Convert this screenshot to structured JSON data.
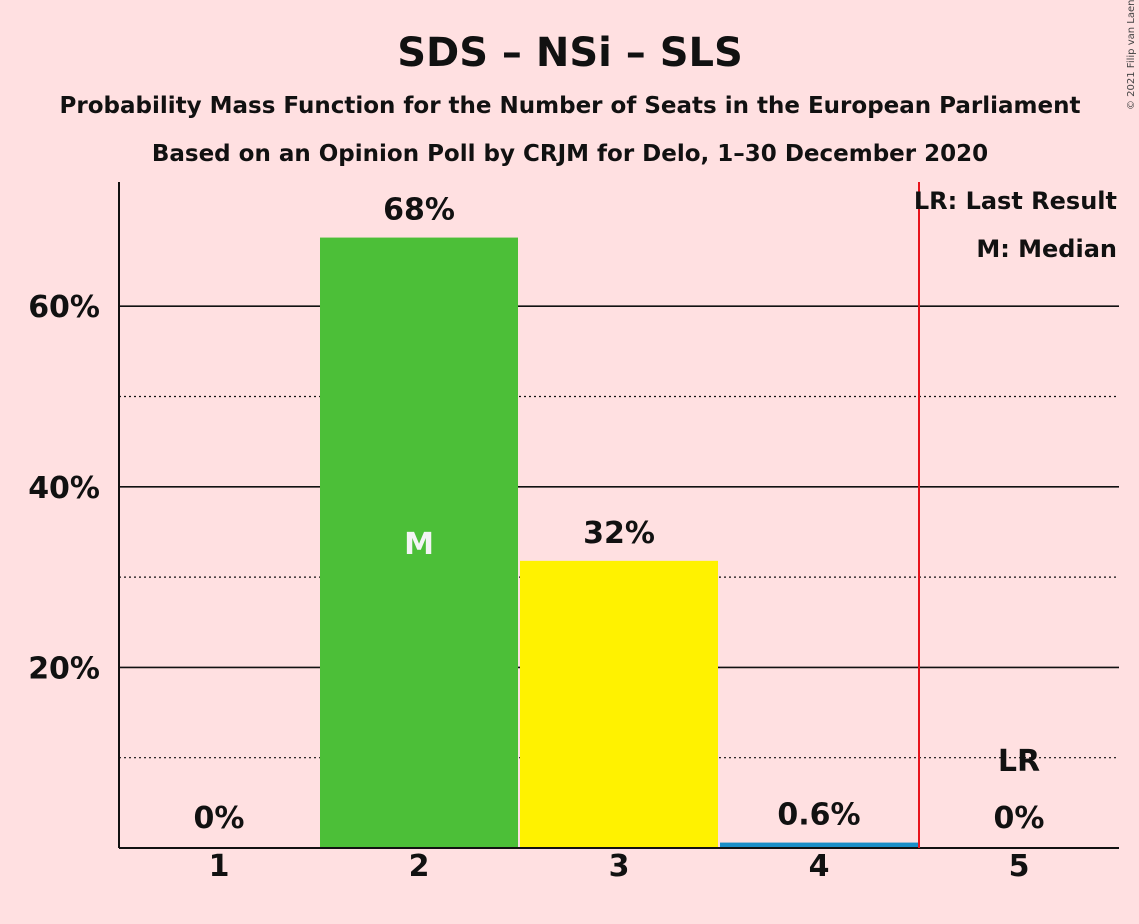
{
  "title": "SDS – NSi – SLS",
  "subtitle1": "Probability Mass Function for the Number of Seats in the European Parliament",
  "subtitle2": "Based on an Opinion Poll by CRJM for Delo, 1–30 December 2020",
  "copyright": "© 2021 Filip van Laenen",
  "legend": {
    "last_result": "LR: Last Result",
    "median": "M: Median"
  },
  "colors": {
    "background": "#FFE0E1",
    "last_result_line": "#E8141C"
  },
  "chart_data": {
    "type": "bar",
    "categories": [
      "1",
      "2",
      "3",
      "4",
      "5"
    ],
    "values": [
      0,
      67.6,
      31.8,
      0.6,
      0
    ],
    "value_labels": [
      "0%",
      "68%",
      "32%",
      "0.6%",
      "0%"
    ],
    "bar_colors": [
      "#4CBF38",
      "#4CBF38",
      "#FFF200",
      "#1A8FC8",
      "#4CBF38"
    ],
    "y_ticks": [
      {
        "value": 20,
        "label": "20%"
      },
      {
        "value": 40,
        "label": "40%"
      },
      {
        "value": 60,
        "label": "60%"
      }
    ],
    "minor_gridlines": [
      10,
      30,
      50
    ],
    "ylim": [
      0,
      74
    ],
    "median": {
      "category": "2",
      "label": "M"
    },
    "last_result": {
      "category": "5",
      "label": "LR",
      "line_after_category": "4"
    }
  }
}
